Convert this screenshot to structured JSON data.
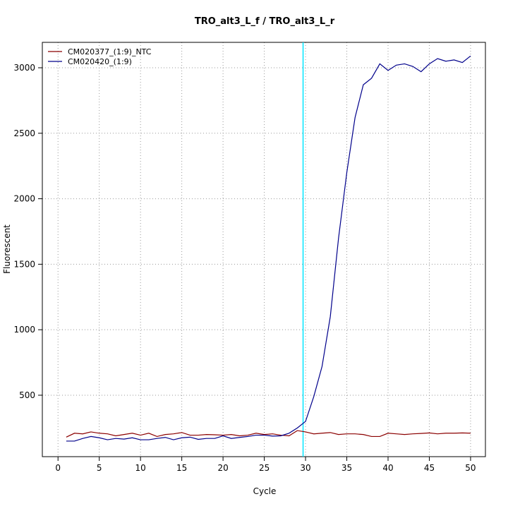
{
  "chart_data": {
    "type": "line",
    "title": "TRO_alt3_L_f / TRO_alt3_L_r",
    "x_label": "Cycle",
    "y_label": "Fluorescent",
    "x": [
      1,
      2,
      3,
      4,
      5,
      6,
      7,
      8,
      9,
      10,
      11,
      12,
      13,
      14,
      15,
      16,
      17,
      18,
      19,
      20,
      21,
      22,
      23,
      24,
      25,
      26,
      27,
      28,
      29,
      30,
      31,
      32,
      33,
      34,
      35,
      36,
      37,
      38,
      39,
      40,
      41,
      42,
      43,
      44,
      45,
      46,
      47,
      48,
      49,
      50
    ],
    "series": [
      {
        "name": "CM020377_(1:9)_NTC",
        "color": "#8b0000",
        "values": [
          180,
          210,
          205,
          220,
          210,
          205,
          190,
          200,
          210,
          195,
          210,
          185,
          200,
          205,
          215,
          195,
          195,
          200,
          198,
          195,
          200,
          190,
          195,
          210,
          200,
          205,
          195,
          190,
          230,
          220,
          205,
          210,
          215,
          200,
          205,
          205,
          200,
          185,
          185,
          210,
          205,
          200,
          205,
          208,
          212,
          205,
          210,
          210,
          212,
          210
        ]
      },
      {
        "name": "CM020420_(1:9)",
        "color": "#00008b",
        "values": [
          150,
          150,
          170,
          185,
          175,
          160,
          170,
          165,
          175,
          160,
          160,
          170,
          178,
          160,
          175,
          180,
          163,
          170,
          170,
          190,
          170,
          178,
          185,
          195,
          195,
          188,
          190,
          210,
          250,
          300,
          490,
          720,
          1100,
          1700,
          2200,
          2620,
          2870,
          2920,
          3030,
          2980,
          3020,
          3030,
          3010,
          2970,
          3030,
          3070,
          3050,
          3060,
          3040,
          3090
        ]
      }
    ],
    "vline": {
      "x": 29.7,
      "color": "#00e5ff"
    },
    "xlim": [
      -1.9,
      51.8
    ],
    "ylim": [
      31,
      3194
    ],
    "xticks": [
      0,
      5,
      10,
      15,
      20,
      25,
      30,
      35,
      40,
      45,
      50
    ],
    "yticks": [
      500,
      1000,
      1500,
      2000,
      2500,
      3000
    ],
    "grid": true,
    "legend": "top-left"
  }
}
